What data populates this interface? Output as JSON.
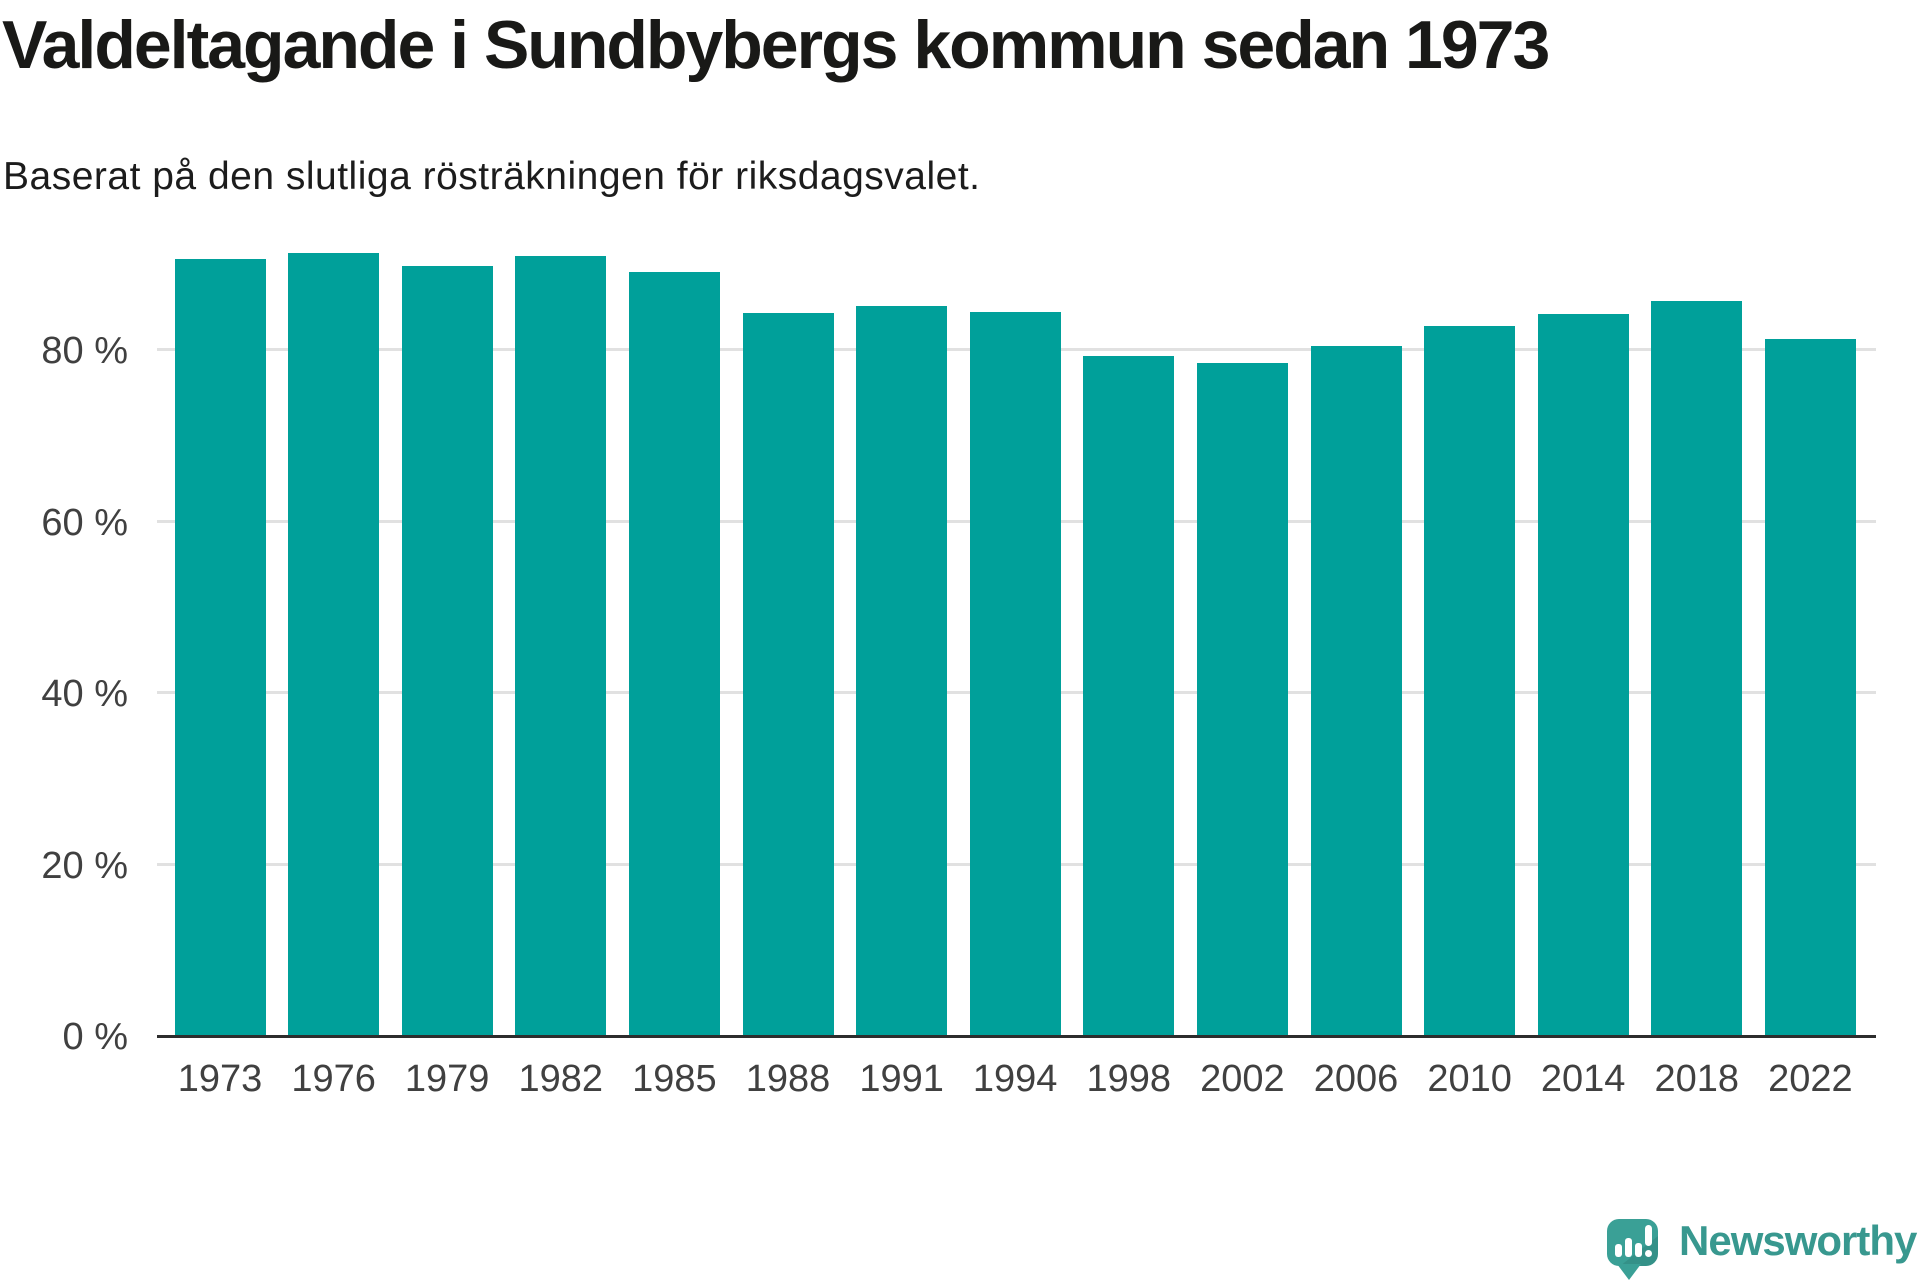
{
  "header": {
    "title": "Valdeltagande i Sundbybergs kommun sedan 1973",
    "subtitle": "Baserat på den slutliga rösträkningen för riksdagsvalet."
  },
  "chart_data": {
    "type": "bar",
    "title": "Valdeltagande i Sundbybergs kommun sedan 1973",
    "subtitle": "Baserat på den slutliga rösträkningen för riksdagsvalet.",
    "categories": [
      "1973",
      "1976",
      "1979",
      "1982",
      "1985",
      "1988",
      "1991",
      "1994",
      "1998",
      "2002",
      "2006",
      "2010",
      "2014",
      "2018",
      "2022"
    ],
    "values": [
      90.6,
      91.3,
      89.8,
      90.9,
      89.1,
      84.2,
      85.1,
      84.4,
      79.2,
      78.4,
      80.4,
      82.7,
      84.1,
      85.6,
      81.2
    ],
    "unit": "%",
    "xlabel": "",
    "ylabel": "",
    "yticks": [
      0,
      20,
      40,
      60,
      80
    ],
    "ytick_suffix": " %",
    "ylim": [
      0,
      96.5
    ],
    "grid": "horizontal",
    "legend": "none",
    "bar_color": "#00a09a"
  },
  "colors": {
    "bar": "#00a09a",
    "grid": "#e1e1e1",
    "axis": "#2d2d2d",
    "tick_text": "#404040",
    "logo_teal": "#3aa096",
    "logo_text_teal": "#38988f"
  },
  "footer": {
    "logo_text": "Newsworthy"
  }
}
